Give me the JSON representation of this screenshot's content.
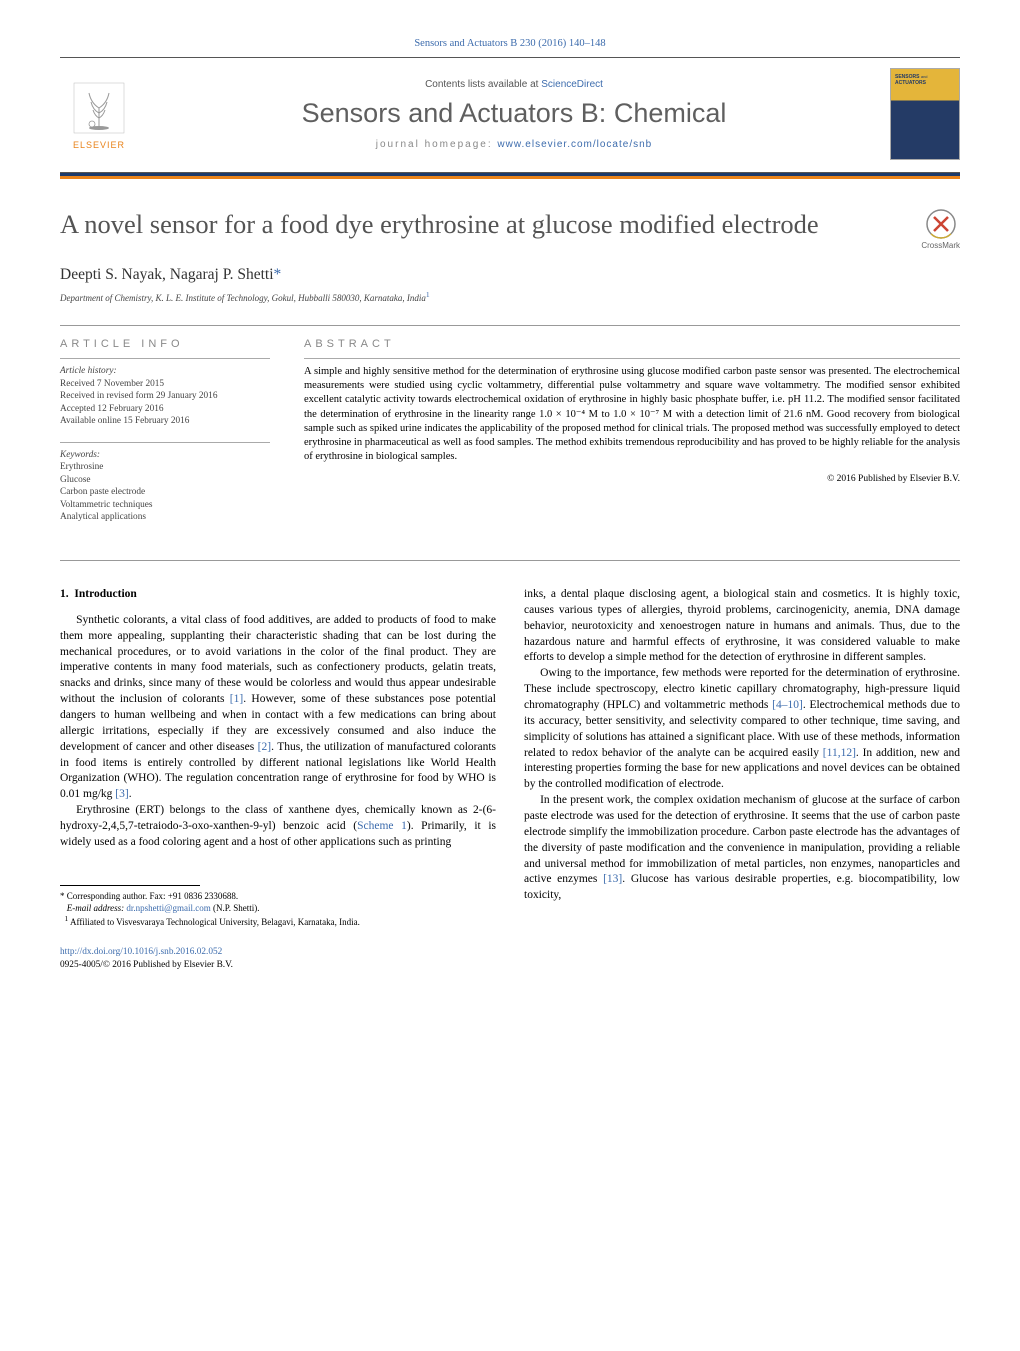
{
  "header": {
    "citation": "Sensors and Actuators B 230 (2016) 140–148",
    "contents_prefix": "Contents lists available at ",
    "contents_link": "ScienceDirect",
    "journal_name": "Sensors and Actuators B: Chemical",
    "homepage_prefix": "journal homepage: ",
    "homepage_url": "www.elsevier.com/locate/snb",
    "cover_text": "SENSORS and\nACTUATORS",
    "elsevier_label": "ELSEVIER"
  },
  "article": {
    "title": "A novel sensor for a food dye erythrosine at glucose modified electrode",
    "crossmark_label": "CrossMark",
    "authors_html": "Deepti S. Nayak, Nagaraj P. Shetti",
    "corresponding_marker": "*",
    "affiliation": "Department of Chemistry, K. L. E. Institute of Technology, Gokul, Hubballi 580030, Karnataka, India",
    "affiliation_sup": "1"
  },
  "info": {
    "heading": "ARTICLE INFO",
    "history_title": "Article history:",
    "history": [
      "Received 7 November 2015",
      "Received in revised form 29 January 2016",
      "Accepted 12 February 2016",
      "Available online 15 February 2016"
    ],
    "keywords_title": "Keywords:",
    "keywords": [
      "Erythrosine",
      "Glucose",
      "Carbon paste electrode",
      "Voltammetric techniques",
      "Analytical applications"
    ]
  },
  "abstract": {
    "heading": "ABSTRACT",
    "text": "A simple and highly sensitive method for the determination of erythrosine using glucose modified carbon paste sensor was presented. The electrochemical measurements were studied using cyclic voltammetry, differential pulse voltammetry and square wave voltammetry. The modified sensor exhibited excellent catalytic activity towards electrochemical oxidation of erythrosine in highly basic phosphate buffer, i.e. pH 11.2. The modified sensor facilitated the determination of erythrosine in the linearity range 1.0 × 10⁻⁴ M to 1.0 × 10⁻⁷ M with a detection limit of 21.6 nM. Good recovery from biological sample such as spiked urine indicates the applicability of the proposed method for clinical trials. The proposed method was successfully employed to detect erythrosine in pharmaceutical as well as food samples. The method exhibits tremendous reproducibility and has proved to be highly reliable for the analysis of erythrosine in biological samples.",
    "copyright": "© 2016 Published by Elsevier B.V."
  },
  "body": {
    "section_number": "1.",
    "section_title": "Introduction",
    "left_paragraphs": [
      "Synthetic colorants, a vital class of food additives, are added to products of food to make them more appealing, supplanting their characteristic shading that can be lost during the mechanical procedures, or to avoid variations in the color of the final product. They are imperative contents in many food materials, such as confectionery products, gelatin treats, snacks and drinks, since many of these would be colorless and would thus appear undesirable without the inclusion of colorants [1]. However, some of these substances pose potential dangers to human wellbeing and when in contact with a few medications can bring about allergic irritations, especially if they are excessively consumed and also induce the development of cancer and other diseases [2]. Thus, the utilization of manufactured colorants in food items is entirely controlled by different national legislations like World Health Organization (WHO). The regulation concentration range of erythrosine for food by WHO is 0.01 mg/kg [3].",
      "Erythrosine (ERT) belongs to the class of xanthene dyes, chemically known as 2-(6-hydroxy-2,4,5,7-tetraiodo-3-oxo-xanthen-9-yl) benzoic acid (Scheme 1). Primarily, it is widely used as a food coloring agent and a host of other applications such as printing"
    ],
    "right_paragraphs": [
      "inks, a dental plaque disclosing agent, a biological stain and cosmetics. It is highly toxic, causes various types of allergies, thyroid problems, carcinogenicity, anemia, DNA damage behavior, neurotoxicity and xenoestrogen nature in humans and animals. Thus, due to the hazardous nature and harmful effects of erythrosine, it was considered valuable to make efforts to develop a simple method for the detection of erythrosine in different samples.",
      "Owing to the importance, few methods were reported for the determination of erythrosine. These include spectroscopy, electro kinetic capillary chromatography, high-pressure liquid chromatography (HPLC) and voltammetric methods [4–10]. Electrochemical methods due to its accuracy, better sensitivity, and selectivity compared to other technique, time saving, and simplicity of solutions has attained a significant place. With use of these methods, information related to redox behavior of the analyte can be acquired easily [11,12]. In addition, new and interesting properties forming the base for new applications and novel devices can be obtained by the controlled modification of electrode.",
      "In the present work, the complex oxidation mechanism of glucose at the surface of carbon paste electrode was used for the detection of erythrosine. It seems that the use of carbon paste electrode simplify the immobilization procedure. Carbon paste electrode has the advantages of the diversity of paste modification and the convenience in manipulation, providing a reliable and universal method for immobilization of metal particles, non enzymes, nanoparticles and active enzymes [13]. Glucose has various desirable properties, e.g. biocompatibility, low toxicity,"
    ]
  },
  "footer": {
    "corresponding_label": "* Corresponding author. Fax: +91 0836 2330688.",
    "email_label": "E-mail address: ",
    "email": "dr.npshetti@gmail.com",
    "email_name": " (N.P. Shetti).",
    "note1_marker": "1",
    "note1": " Affiliated to Visvesvaraya Technological University, Belagavi, Karnataka, India.",
    "doi_url": "http://dx.doi.org/10.1016/j.snb.2016.02.052",
    "issn_line": "0925-4005/© 2016 Published by Elsevier B.V."
  },
  "refs": {
    "r1": "[1]",
    "r2": "[2]",
    "r3": "[3]",
    "r4_10": "[4–10]",
    "r11_12": "[11,12]",
    "r13": "[13]",
    "scheme1": "Scheme 1"
  },
  "colors": {
    "link": "#3d6cad",
    "orange": "#e8831b",
    "darkblue": "#1a3a6b",
    "title_gray": "#545454",
    "text": "#000000"
  }
}
